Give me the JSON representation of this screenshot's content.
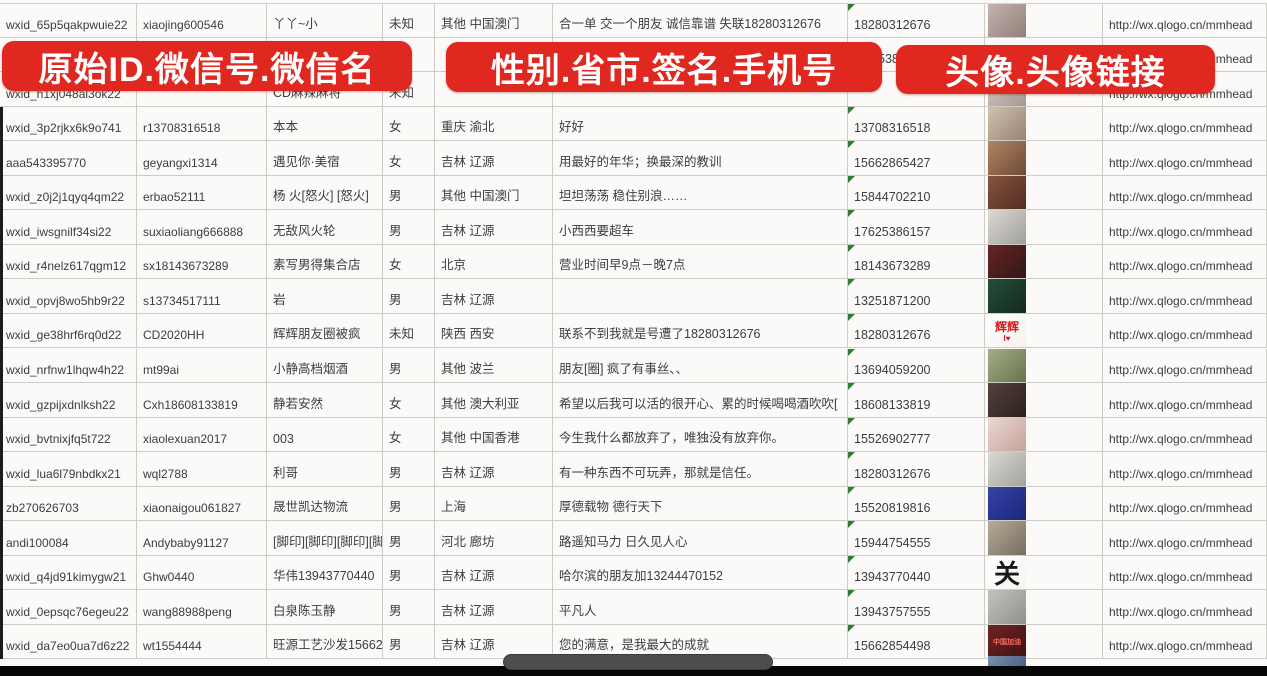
{
  "banners": {
    "left": "原始ID.微信号.微信名",
    "middle": "性别.省市.签名.手机号",
    "right": "头像.头像链接",
    "color": "#e02820"
  },
  "indicator_color": "#2e7d32",
  "scrollbar": {
    "thumb_color": "#4d4d4d",
    "track_color": "#060606"
  },
  "rows": [
    {
      "wxid": "wxid_65p5qakpwuie22",
      "wid": "xiaojing600546",
      "name": "丫丫~小",
      "gender": "未知",
      "region": "其他 中国澳门",
      "sig": "合一单 交一个朋友 诚信靠谱 失联18280312676",
      "phone": "18280312676",
      "url": "http://wx.qlogo.cn/mmhead",
      "tri": true,
      "avatar": {
        "c": [
          "#c7b6b2",
          "#8f7b76"
        ]
      }
    },
    {
      "wxid": "",
      "wid": "",
      "name": "",
      "gender": "",
      "region": "",
      "sig": "",
      "phone": "5386",
      "phone_pad": 30,
      "url": "http://wx.qlogo.cn/mmhead",
      "tri": false,
      "avatar": null
    },
    {
      "wxid": "wxid_h1xj048al3ok22",
      "wid": "",
      "name": "CD麻辣麻将",
      "gender": "未知",
      "region": "",
      "sig": "",
      "phone": "",
      "url": "http://wx.qlogo.cn/mmhead",
      "tri": false,
      "avatar": {
        "c": [
          "#d9d2ca",
          "#a3958c"
        ]
      }
    },
    {
      "wxid": "wxid_3p2rjkx6k9o741",
      "wid": "r13708316518",
      "name": "本本",
      "gender": "女",
      "region": "重庆 渝北",
      "sig": "好好",
      "phone": "13708316518",
      "url": "http://wx.qlogo.cn/mmhead",
      "tri": true,
      "avatar": {
        "c": [
          "#d3c4b0",
          "#94806f"
        ]
      }
    },
    {
      "wxid": "aaa543395770",
      "wid": "geyangxi1314",
      "name": "遇见你·美宿",
      "gender": "女",
      "region": "吉林 辽源",
      "sig": "用最好的年华；换最深的教训",
      "phone": "15662865427",
      "url": "http://wx.qlogo.cn/mmhead",
      "tri": true,
      "avatar": {
        "c": [
          "#b08a62",
          "#6d4733"
        ]
      }
    },
    {
      "wxid": "wxid_z0j2j1qyq4qm22",
      "wid": "erbao52111",
      "name": "杨 火[怒火] [怒火]",
      "gender": "男",
      "region": "其他 中国澳门",
      "sig": "坦坦荡荡 稳住别浪……",
      "phone": "15844702210",
      "url": "http://wx.qlogo.cn/mmhead",
      "tri": true,
      "avatar": {
        "c": [
          "#8a5440",
          "#4e2c20"
        ]
      }
    },
    {
      "wxid": "wxid_iwsgnilf34si22",
      "wid": "suxiaoliang666888",
      "name": "无敌风火轮",
      "gender": "男",
      "region": "吉林 辽源",
      "sig": "小西西要超车",
      "phone": "17625386157",
      "url": "http://wx.qlogo.cn/mmhead",
      "tri": true,
      "avatar": {
        "c": [
          "#e0dcd6",
          "#9c9c98"
        ]
      }
    },
    {
      "wxid": "wxid_r4nelz617qgm12",
      "wid": "sx18143673289",
      "name": "素写男得集合店",
      "gender": "女",
      "region": "北京",
      "sig": "营业时间早9点－晚7点",
      "phone": "18143673289",
      "url": "http://wx.qlogo.cn/mmhead",
      "tri": true,
      "avatar": {
        "c": [
          "#6a2424",
          "#2e1616"
        ]
      }
    },
    {
      "wxid": "wxid_opvj8wo5hb9r22",
      "wid": "s13734517111",
      "name": "岩",
      "gender": "男",
      "region": "吉林 辽源",
      "sig": "",
      "phone": "13251871200",
      "url": "http://wx.qlogo.cn/mmhead",
      "tri": true,
      "avatar": {
        "c": [
          "#27503a",
          "#12281c"
        ]
      }
    },
    {
      "wxid": "wxid_ge38hrf6rq0d22",
      "wid": "CD2020HH",
      "name": "辉辉朋友圈被疯",
      "gender": "未知",
      "region": "陕西 西安",
      "sig": "联系不到我就是号遭了18280312676",
      "phone": "18280312676",
      "url": "http://wx.qlogo.cn/mmhead",
      "tri": true,
      "avatar": {
        "c": [
          "#ffffff",
          "#f4f0ec"
        ],
        "text": "辉辉",
        "tc": "#d42020",
        "fs": 12,
        "sub": "I♥"
      }
    },
    {
      "wxid": "wxid_nrfnw1lhqw4h22",
      "wid": "mt99ai",
      "name": "小静高档烟酒",
      "gender": "男",
      "region": "其他 波兰",
      "sig": "朋友[圈] 疯了有事丝、、",
      "phone": "13694059200",
      "url": "http://wx.qlogo.cn/mmhead",
      "tri": true,
      "avatar": {
        "c": [
          "#a8b086",
          "#62704c"
        ]
      }
    },
    {
      "wxid": "wxid_gzpijxdnlksh22",
      "wid": "Cxh18608133819",
      "name": "静若安然",
      "gender": "女",
      "region": "其他 澳大利亚",
      "sig": "希望以后我可以活的很开心、累的时候喝喝酒吹吹[",
      "phone": "18608133819",
      "url": "http://wx.qlogo.cn/mmhead",
      "tri": true,
      "avatar": {
        "c": [
          "#564440",
          "#2a1e1c"
        ]
      }
    },
    {
      "wxid": "wxid_bvtnixjfq5t722",
      "wid": "xiaolexuan2017",
      "name": "003",
      "gender": "女",
      "region": "其他 中国香港",
      "sig": "今生我什么都放弃了，唯独没有放弃你。",
      "phone": "15526902777",
      "url": "http://wx.qlogo.cn/mmhead",
      "tri": true,
      "avatar": {
        "c": [
          "#eed9d3",
          "#c0a099"
        ]
      }
    },
    {
      "wxid": "wxid_lua6l79nbdkx21",
      "wid": "wql2788",
      "name": "利哥",
      "gender": "男",
      "region": "吉林 辽源",
      "sig": "有一种东西不可玩弄，那就是信任。",
      "phone": "18280312676",
      "url": "http://wx.qlogo.cn/mmhead",
      "tri": true,
      "avatar": {
        "c": [
          "#dcdcd8",
          "#a0a09a"
        ]
      }
    },
    {
      "wxid": "zb270626703",
      "wid": "xiaonaigou061827",
      "name": "晟世凯达物流",
      "gender": "男",
      "region": "上海",
      "sig": "厚德载物 德行天下",
      "phone": "15520819816",
      "url": "http://wx.qlogo.cn/mmhead",
      "tri": true,
      "avatar": {
        "c": [
          "#3646a8",
          "#1a2478"
        ]
      }
    },
    {
      "wxid": "andi100084",
      "wid": "Andybaby91127",
      "name": "[脚印][脚印][脚印][脚印]",
      "gender": "男",
      "region": "河北 廊坊",
      "sig": "路遥知马力 日久见人心",
      "phone": "15944754555",
      "url": "http://wx.qlogo.cn/mmhead",
      "tri": true,
      "avatar": {
        "c": [
          "#b8ae9a",
          "#726a5c"
        ]
      }
    },
    {
      "wxid": "wxid_q4jd91kimygw21",
      "wid": "Ghw0440",
      "name": "华伟13943770440",
      "gender": "男",
      "region": "吉林 辽源",
      "sig": "哈尔滨的朋友加13244470152",
      "phone": "13943770440",
      "url": "http://wx.qlogo.cn/mmhead",
      "tri": true,
      "avatar": {
        "c": [
          "#ffffff",
          "#f6f4f0"
        ],
        "text": "关",
        "tc": "#1a1a1a",
        "fs": 26
      }
    },
    {
      "wxid": "wxid_0epsqc76egeu22",
      "wid": "wang88988peng",
      "name": "白泉陈玉静",
      "gender": "男",
      "region": "吉林 辽源",
      "sig": "平凡人",
      "phone": "13943757555",
      "url": "http://wx.qlogo.cn/mmhead",
      "tri": true,
      "avatar": {
        "c": [
          "#c4c4c0",
          "#8e8e8a"
        ]
      }
    },
    {
      "wxid": "wxid_da7eo0ua7d6z22",
      "wid": "wt1554444",
      "name": "旺源工艺沙发15662854",
      "gender": "男",
      "region": "吉林 辽源",
      "sig": "您的满意，是我最大的成就",
      "phone": "15662854498",
      "url": "http://wx.qlogo.cn/mmhead",
      "tri": true,
      "avatar": {
        "c": [
          "#702424",
          "#401212"
        ],
        "text": "中国加油",
        "tc": "#ff6a5a",
        "fs": 7
      }
    }
  ]
}
